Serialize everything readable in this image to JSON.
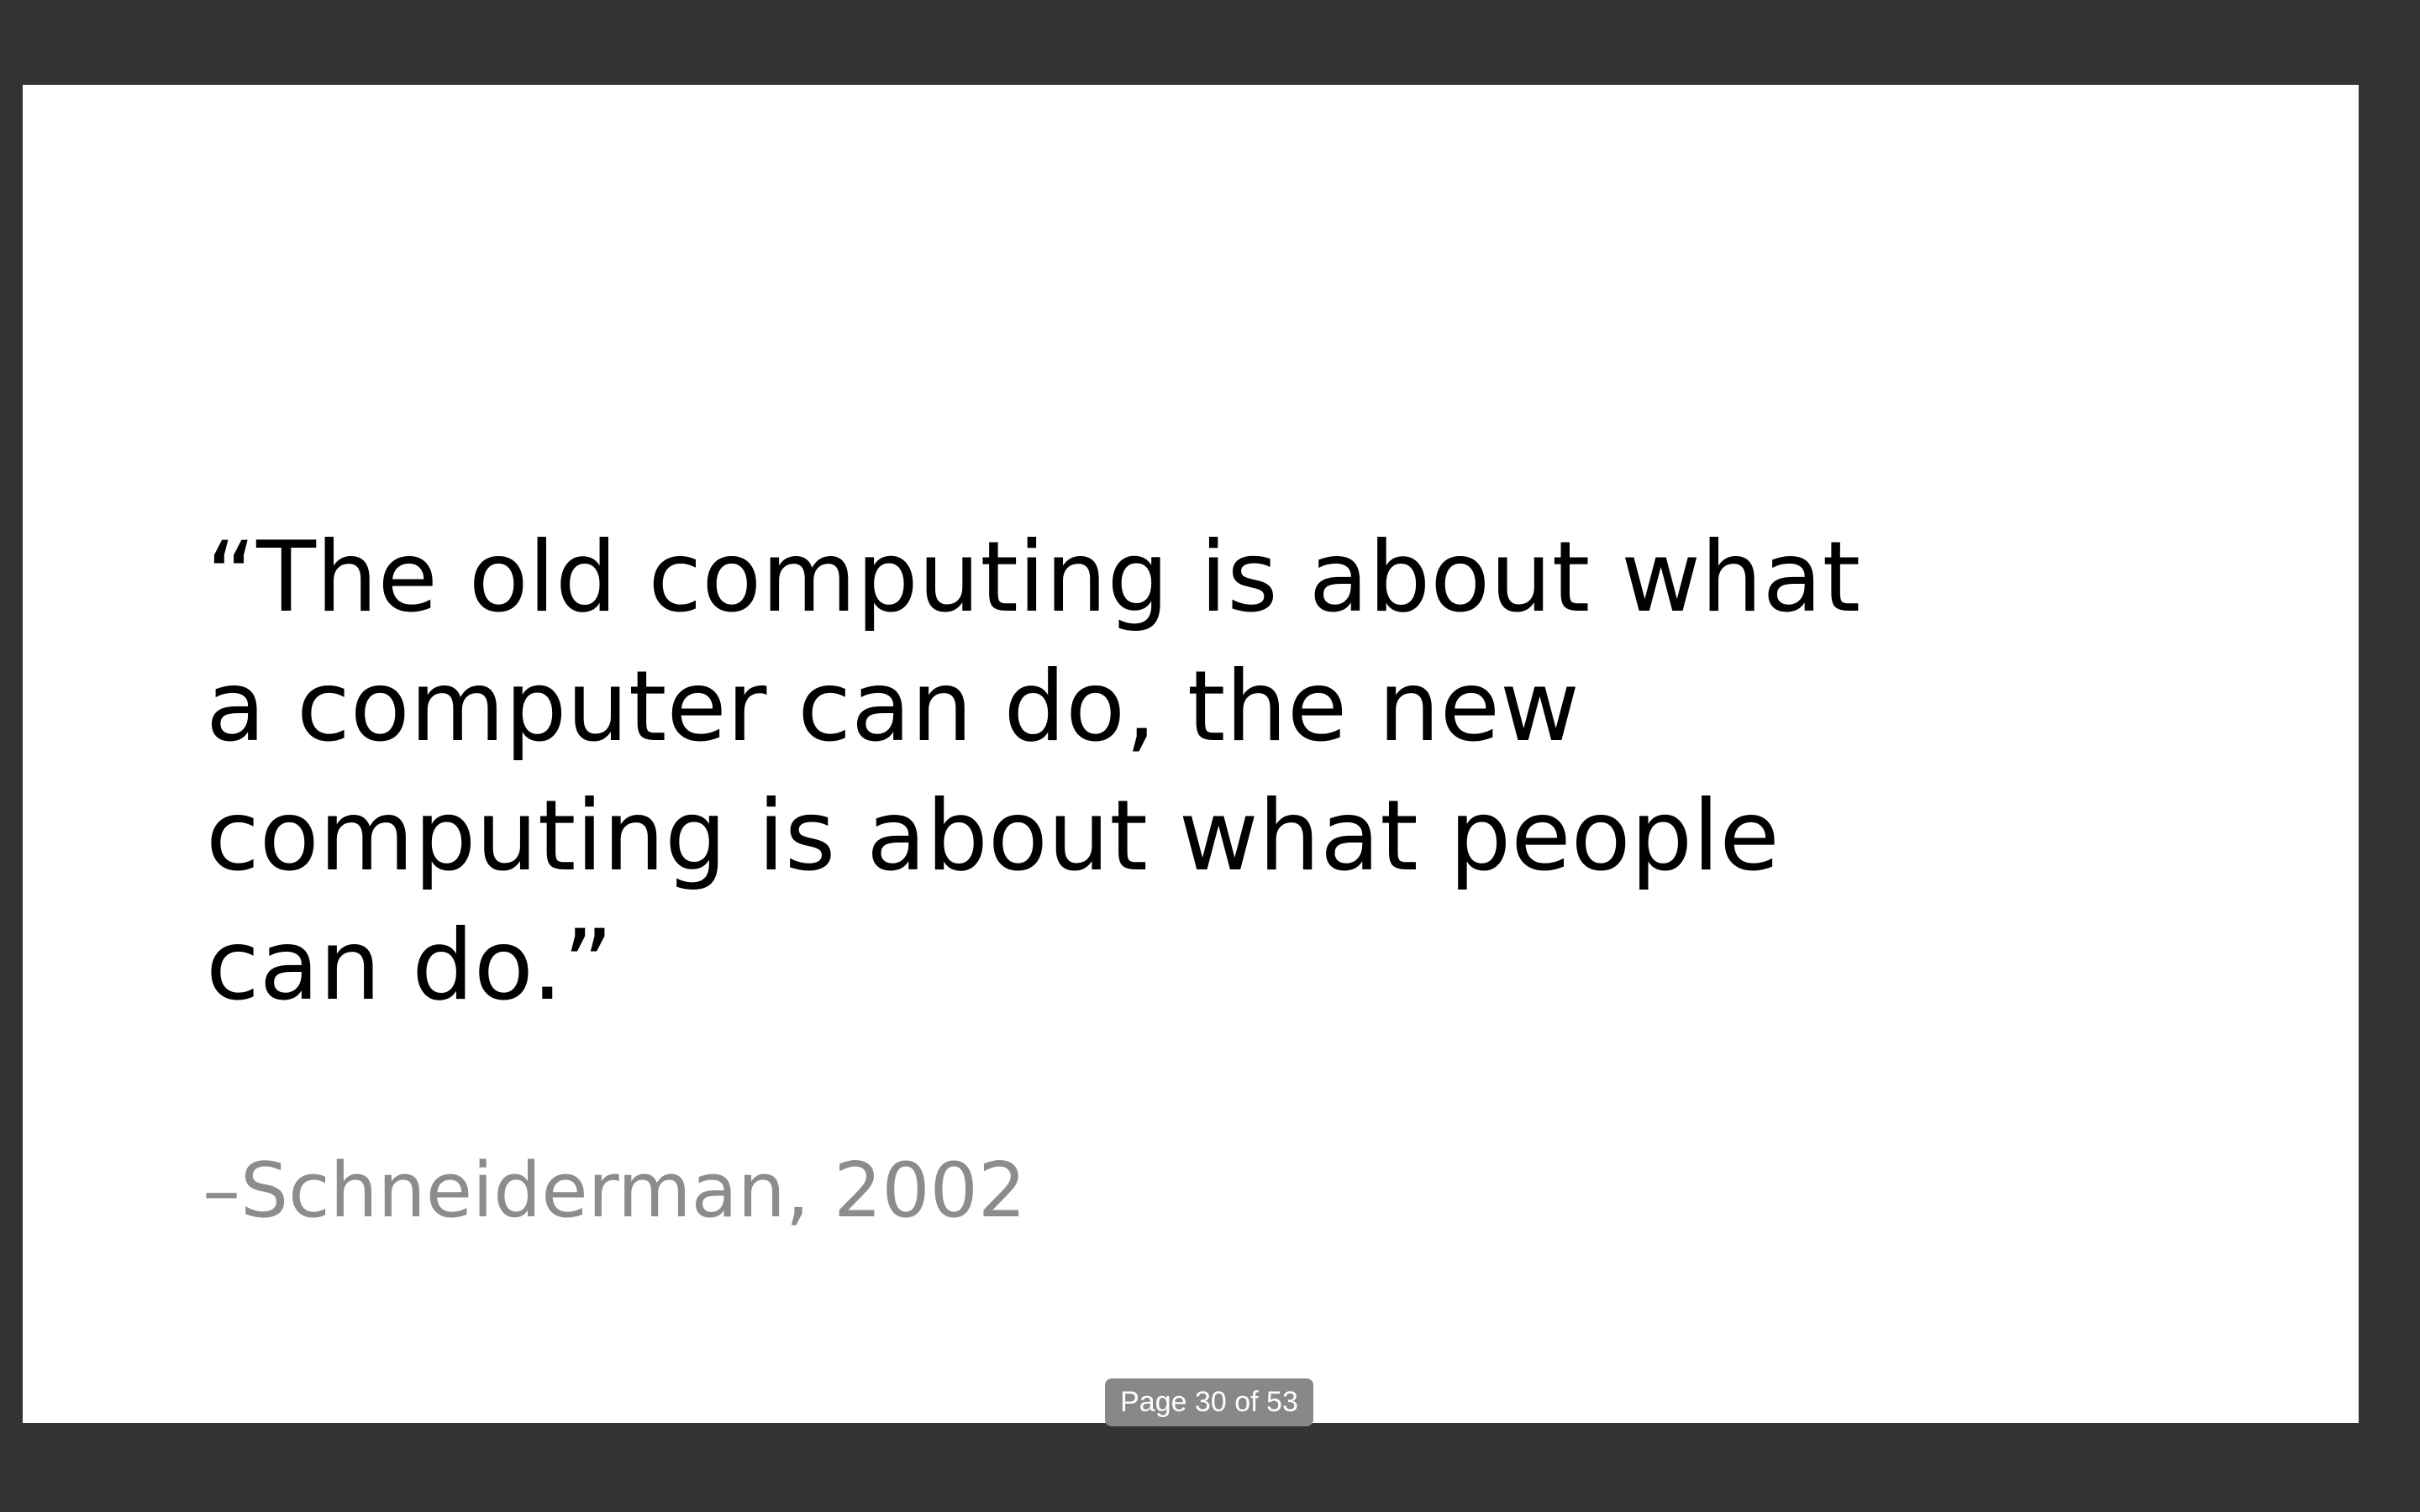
{
  "slide": {
    "quote_text": "“The old computing is about what\na computer can do, the new\ncomputing is about what people\ncan do.”",
    "attribution": "–Schneiderman, 2002"
  },
  "viewer": {
    "page_indicator": "Page 30 of 53"
  },
  "colors": {
    "viewer_background": "#333333",
    "slide_background": "#ffffff",
    "quote_text": "#000000",
    "attribution_text": "#8c8c8c",
    "page_indicator_background": "#888888"
  }
}
